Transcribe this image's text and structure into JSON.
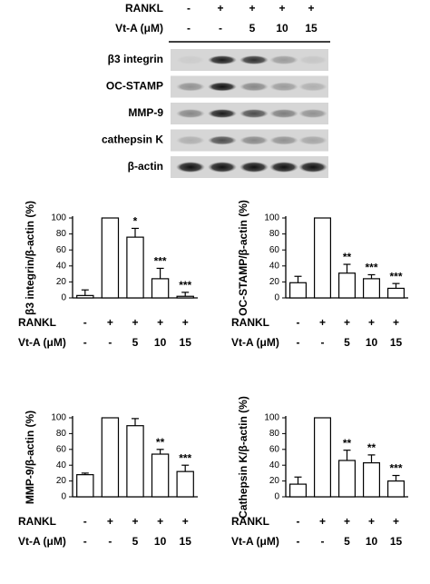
{
  "blot": {
    "conditions": [
      {
        "label": "RANKL",
        "values": [
          "-",
          "+",
          "+",
          "+",
          "+"
        ]
      },
      {
        "label": "Vt-A (μM)",
        "values": [
          "-",
          "-",
          "5",
          "10",
          "15"
        ]
      }
    ],
    "bands": [
      "β3 integrin",
      "OC-STAMP",
      "MMP-9",
      "cathepsin K",
      "β-actin"
    ]
  },
  "chart_data": [
    {
      "type": "bar",
      "ylabel": "β3 integrin/β-actin (%)",
      "values": [
        3,
        100,
        76,
        24,
        2
      ],
      "errors": [
        7,
        null,
        11,
        13,
        5
      ],
      "annotations": [
        null,
        null,
        "*",
        "***",
        "***"
      ],
      "color": "#ffffff",
      "ylim": [
        0,
        100
      ],
      "yticks": [
        0,
        20,
        40,
        60,
        80,
        100
      ],
      "conditions": [
        {
          "label": "RANKL",
          "values": [
            "-",
            "+",
            "+",
            "+",
            "+"
          ]
        },
        {
          "label": "Vt-A (μM)",
          "values": [
            "-",
            "-",
            "5",
            "10",
            "15"
          ]
        }
      ]
    },
    {
      "type": "bar",
      "ylabel": "OC-STAMP/β-actin (%)",
      "values": [
        19,
        100,
        31,
        24,
        12
      ],
      "errors": [
        8,
        null,
        11,
        5,
        6
      ],
      "annotations": [
        null,
        null,
        "**",
        "***",
        "***"
      ],
      "color": "#ffffff",
      "ylim": [
        0,
        100
      ],
      "yticks": [
        0,
        20,
        40,
        60,
        80,
        100
      ],
      "conditions": [
        {
          "label": "RANKL",
          "values": [
            "-",
            "+",
            "+",
            "+",
            "+"
          ]
        },
        {
          "label": "Vt-A (μM)",
          "values": [
            "-",
            "-",
            "5",
            "10",
            "15"
          ]
        }
      ]
    },
    {
      "type": "bar",
      "ylabel": "MMP-9/β-actin (%)",
      "values": [
        28,
        100,
        90,
        54,
        32
      ],
      "errors": [
        2,
        null,
        9,
        6,
        8
      ],
      "annotations": [
        null,
        null,
        null,
        "**",
        "***"
      ],
      "color": "#ffffff",
      "ylim": [
        0,
        100
      ],
      "yticks": [
        0,
        20,
        40,
        60,
        80,
        100
      ],
      "conditions": [
        {
          "label": "RANKL",
          "values": [
            "-",
            "+",
            "+",
            "+",
            "+"
          ]
        },
        {
          "label": "Vt-A (μM)",
          "values": [
            "-",
            "-",
            "5",
            "10",
            "15"
          ]
        }
      ]
    },
    {
      "type": "bar",
      "ylabel": "Cathepsin K/β-actin (%)",
      "values": [
        16,
        100,
        46,
        43,
        20
      ],
      "errors": [
        9,
        null,
        13,
        10,
        7
      ],
      "annotations": [
        null,
        null,
        "**",
        "**",
        "***"
      ],
      "color": "#ffffff",
      "ylim": [
        0,
        100
      ],
      "yticks": [
        0,
        20,
        40,
        60,
        80,
        100
      ],
      "conditions": [
        {
          "label": "RANKL",
          "values": [
            "-",
            "+",
            "+",
            "+",
            "+"
          ]
        },
        {
          "label": "Vt-A (μM)",
          "values": [
            "-",
            "-",
            "5",
            "10",
            "15"
          ]
        }
      ]
    }
  ]
}
